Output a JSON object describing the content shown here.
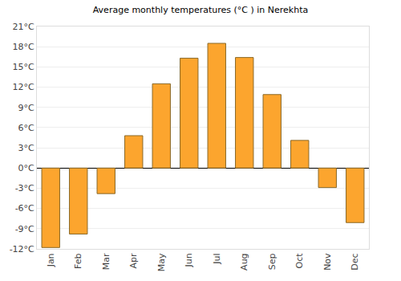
{
  "chart_data": {
    "type": "bar",
    "title": "Average monthly temperatures (°C ) in Nerekhta",
    "categories": [
      "Jan",
      "Feb",
      "Mar",
      "Apr",
      "May",
      "Jun",
      "Jul",
      "Aug",
      "Sep",
      "Oct",
      "Nov",
      "Dec"
    ],
    "values": [
      -11.8,
      -9.8,
      -3.8,
      4.8,
      12.5,
      16.3,
      18.5,
      16.4,
      10.9,
      4.1,
      -2.9,
      -8.1
    ],
    "color": "#fca52e",
    "ylim": [
      -12,
      21
    ],
    "yticks": [
      {
        "value": -12,
        "label": "-12°C"
      },
      {
        "value": -9,
        "label": "-9°C"
      },
      {
        "value": -6,
        "label": "-6°C"
      },
      {
        "value": -3,
        "label": "-3°C"
      },
      {
        "value": 0,
        "label": "0°C"
      },
      {
        "value": 3,
        "label": "3°C"
      },
      {
        "value": 6,
        "label": "6°C"
      },
      {
        "value": 9,
        "label": "9°C"
      },
      {
        "value": 12,
        "label": "12°C"
      },
      {
        "value": 15,
        "label": "15°C"
      },
      {
        "value": 18,
        "label": "18°C"
      },
      {
        "value": 21,
        "label": "21°C"
      }
    ],
    "grid": true
  }
}
